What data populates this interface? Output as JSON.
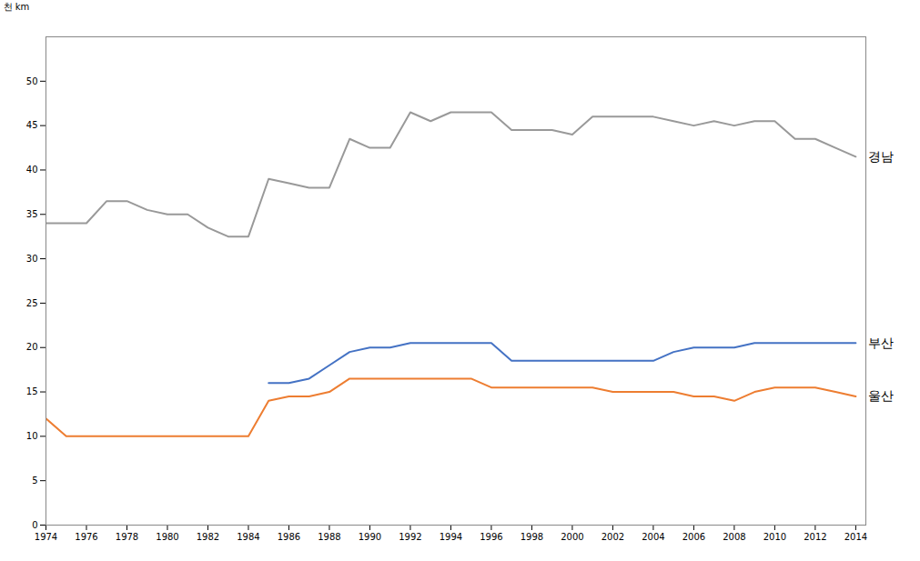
{
  "chart_data": {
    "type": "line",
    "y_label": "천 km",
    "x": [
      1974,
      1975,
      1976,
      1977,
      1978,
      1979,
      1980,
      1981,
      1982,
      1983,
      1984,
      1985,
      1986,
      1987,
      1988,
      1989,
      1990,
      1991,
      1992,
      1993,
      1994,
      1995,
      1996,
      1997,
      1998,
      1999,
      2000,
      2001,
      2002,
      2003,
      2004,
      2005,
      2006,
      2007,
      2008,
      2009,
      2010,
      2011,
      2012,
      2013,
      2014
    ],
    "series": [
      {
        "name": "경남",
        "color": "#999999",
        "values": [
          34.0,
          34.0,
          34.0,
          36.5,
          36.5,
          35.5,
          35.0,
          35.0,
          33.5,
          32.5,
          32.5,
          39.0,
          38.5,
          38.0,
          38.0,
          43.5,
          42.5,
          42.5,
          46.5,
          45.5,
          46.5,
          46.5,
          46.5,
          44.5,
          44.5,
          44.5,
          44.0,
          46.0,
          46.0,
          46.0,
          46.0,
          45.5,
          45.0,
          45.5,
          45.0,
          45.5,
          45.5,
          43.5,
          43.5,
          42.5,
          41.5
        ]
      },
      {
        "name": "부산",
        "color": "#4472C4",
        "values": [
          null,
          null,
          null,
          null,
          null,
          null,
          null,
          null,
          null,
          null,
          null,
          16.0,
          16.0,
          16.5,
          18.0,
          19.5,
          20.0,
          20.0,
          20.5,
          20.5,
          20.5,
          20.5,
          20.5,
          18.5,
          18.5,
          18.5,
          18.5,
          18.5,
          18.5,
          18.5,
          18.5,
          19.5,
          20.0,
          20.0,
          20.0,
          20.5,
          20.5,
          20.5,
          20.5,
          20.5,
          20.5
        ]
      },
      {
        "name": "울산",
        "color": "#ED7D31",
        "values": [
          12.0,
          10.0,
          10.0,
          10.0,
          10.0,
          10.0,
          10.0,
          10.0,
          10.0,
          10.0,
          10.0,
          14.0,
          14.5,
          14.5,
          15.0,
          16.5,
          16.5,
          16.5,
          16.5,
          16.5,
          16.5,
          16.5,
          15.5,
          15.5,
          15.5,
          15.5,
          15.5,
          15.5,
          15.0,
          15.0,
          15.0,
          15.0,
          14.5,
          14.5,
          14.0,
          15.0,
          15.5,
          15.5,
          15.5,
          15.0,
          14.5
        ]
      }
    ],
    "xlim": [
      1974,
      2014.5
    ],
    "xticks": [
      1974,
      1976,
      1978,
      1980,
      1982,
      1984,
      1986,
      1988,
      1990,
      1992,
      1994,
      1996,
      1998,
      2000,
      2002,
      2004,
      2006,
      2008,
      2010,
      2012,
      2014
    ],
    "ylim": [
      0,
      55
    ],
    "yticks": [
      0,
      5,
      10,
      15,
      20,
      25,
      30,
      35,
      40,
      45,
      50
    ],
    "grid": false
  }
}
